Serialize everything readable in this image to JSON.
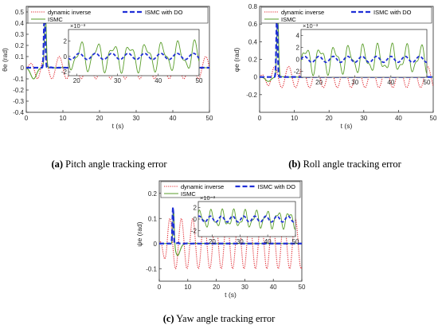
{
  "colors": {
    "dynamic_inverse": "#e0242b",
    "ismc": "#5a9e2a",
    "ismc_with_do": "#1f2fd6",
    "axis": "#262626"
  },
  "chart_data": [
    {
      "type": "line",
      "caption_label": "(a)",
      "caption_text": " Pitch angle tracking error",
      "xlabel": "t (s)",
      "ylabel": "θe (rad)",
      "xlim": [
        0,
        50
      ],
      "ylim": [
        -0.4,
        0.55
      ],
      "xticks": [
        "0",
        "10",
        "20",
        "30",
        "40",
        "50"
      ],
      "yticks": [
        "-0.4",
        "-0.3",
        "-0.2",
        "-0.1",
        "0",
        "0.1",
        "0.2",
        "0.3",
        "0.4",
        "0.5"
      ],
      "legend": [
        "dynamic inverse",
        "ISMC",
        "ISMC with DO"
      ],
      "series": [
        {
          "name": "dynamic inverse",
          "style": "dotted",
          "amplitude": 0.1,
          "period": 4.0,
          "phase": 0.0,
          "x_start": 0,
          "x_end": 50
        },
        {
          "name": "ISMC",
          "style": "solid",
          "peak": 0.52,
          "peak_x": 5.2,
          "dip": -0.1,
          "dip_x": 2.0
        },
        {
          "name": "ISMC with DO",
          "style": "dashed",
          "peak": 0.53,
          "peak_x": 5.0
        }
      ],
      "inset": {
        "exponent": "×10⁻³",
        "xlim": [
          18,
          50
        ],
        "ylim": [
          -2.5,
          3.5
        ],
        "xticks": [
          "20",
          "30",
          "40",
          "50"
        ],
        "yticks": [
          "-2",
          "0",
          "2"
        ],
        "ismc_amplitude": 2.0,
        "do_amplitude": 0.4
      }
    },
    {
      "type": "line",
      "caption_label": "(b)",
      "caption_text": " Roll angle tracking error",
      "xlabel": "t (s)",
      "ylabel": "φe (rad)",
      "xlim": [
        0,
        50
      ],
      "ylim": [
        -0.4,
        0.8
      ],
      "xticks": [
        "0",
        "10",
        "20",
        "30",
        "40",
        "50"
      ],
      "yticks": [
        "-0.2",
        "0",
        "0.2",
        "0.4",
        "0.6",
        "0.8"
      ],
      "legend": [
        "dynamic inverse",
        "ISMC",
        "ISMC with DO"
      ],
      "series": [
        {
          "name": "dynamic inverse",
          "style": "dotted",
          "amplitude": 0.12,
          "period": 4.0,
          "phase": 1.0,
          "x_start": 0,
          "x_end": 50
        },
        {
          "name": "ISMC",
          "style": "solid",
          "peak": 0.72,
          "peak_x": 5.2,
          "dip": -0.05,
          "dip_x": 2.5
        },
        {
          "name": "ISMC with DO",
          "style": "dashed",
          "peak": 0.7,
          "peak_x": 5.0
        }
      ],
      "inset": {
        "exponent": "×10⁻³",
        "xlim": [
          15,
          50
        ],
        "ylim": [
          -3,
          5
        ],
        "xticks": [
          "20",
          "30",
          "40",
          "50"
        ],
        "yticks": [
          "-2",
          "0",
          "2",
          "4"
        ],
        "ismc_amplitude": 2.5,
        "do_amplitude": 0.5
      }
    },
    {
      "type": "line",
      "caption_label": "(c)",
      "caption_text": " Yaw angle tracking error",
      "xlabel": "t (s)",
      "ylabel": "ψe (rad)",
      "xlim": [
        0,
        50
      ],
      "ylim": [
        -0.15,
        0.25
      ],
      "xticks": [
        "0",
        "10",
        "20",
        "30",
        "40",
        "50"
      ],
      "yticks": [
        "-0.1",
        "0",
        "0.1",
        "0.2"
      ],
      "legend": [
        "dynamic inverse",
        "ISMC",
        "ISMC with DO"
      ],
      "series": [
        {
          "name": "dynamic inverse",
          "style": "dotted",
          "amplitude": 0.1,
          "period": 4.0,
          "phase": 2.0,
          "x_start": 0,
          "x_end": 50
        },
        {
          "name": "ISMC",
          "style": "solid",
          "peak": 0.14,
          "peak_x": 5.0,
          "dip": -0.05,
          "dip_x": 6.5
        },
        {
          "name": "ISMC with DO",
          "style": "dashed",
          "peak": 0.145,
          "peak_x": 4.8
        }
      ],
      "inset": {
        "exponent": "×10⁻³",
        "xlim": [
          15,
          50
        ],
        "ylim": [
          -3,
          3
        ],
        "xticks": [
          "20",
          "30",
          "40",
          "50"
        ],
        "yticks": [
          "-2",
          "0",
          "2"
        ],
        "ismc_amplitude": 1.6,
        "do_amplitude": 0.5
      }
    }
  ]
}
